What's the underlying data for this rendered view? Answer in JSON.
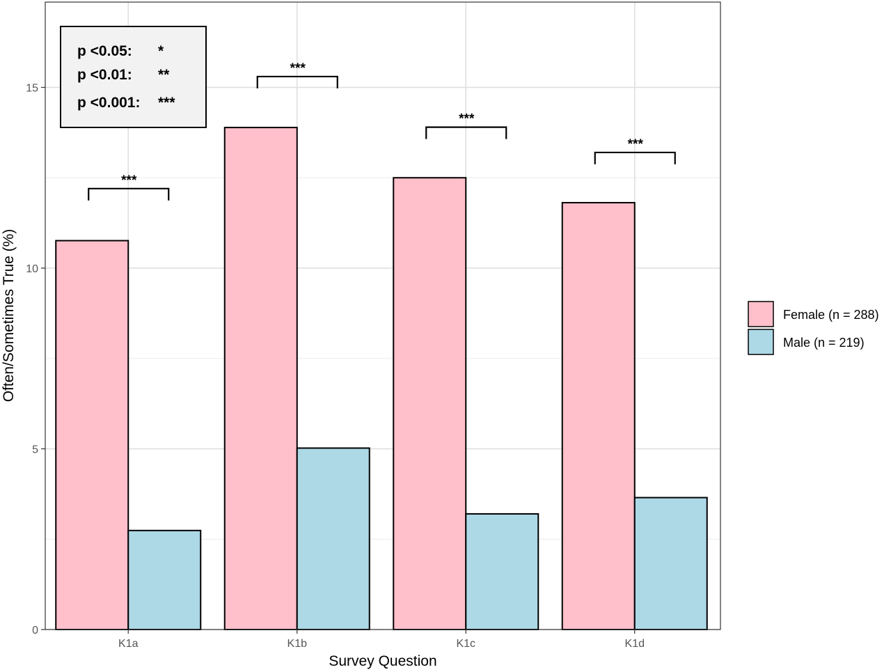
{
  "chart_data": {
    "type": "bar",
    "xlabel": "Survey Question",
    "ylabel": "Often/Sometimes True (%)",
    "categories": [
      "K1a",
      "K1b",
      "K1c",
      "K1d"
    ],
    "ylim": [
      0,
      17
    ],
    "yticks": [
      0,
      5,
      10,
      15
    ],
    "grid": true,
    "legend_position": "right",
    "series": [
      {
        "name": "Female (n = 288)",
        "color": "#FFC0CB",
        "values": [
          10.76,
          13.89,
          12.5,
          11.81
        ]
      },
      {
        "name": "Male (n = 219)",
        "color": "#ADD8E6",
        "values": [
          2.74,
          5.02,
          3.2,
          3.65
        ]
      }
    ],
    "significance": [
      {
        "category": "K1a",
        "label": "***",
        "bracket_y": 12.2
      },
      {
        "category": "K1b",
        "label": "***",
        "bracket_y": 15.3
      },
      {
        "category": "K1c",
        "label": "***",
        "bracket_y": 13.9
      },
      {
        "category": "K1d",
        "label": "***",
        "bracket_y": 13.2
      }
    ],
    "significance_key": [
      {
        "label": "p <0.05:",
        "stars": "*"
      },
      {
        "label": "p <0.01:",
        "stars": "**"
      },
      {
        "label": "p <0.001:",
        "stars": "***"
      }
    ]
  }
}
